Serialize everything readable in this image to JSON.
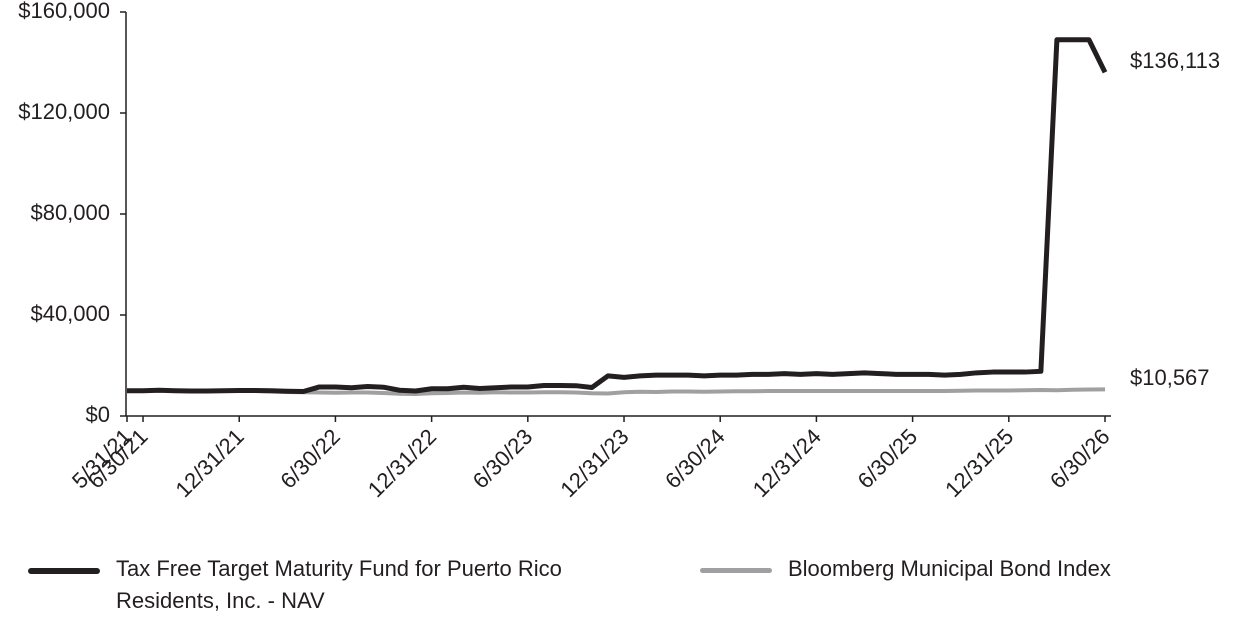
{
  "chart_data": {
    "type": "line",
    "categories": [
      "5/31/21",
      "6/30/21",
      null,
      null,
      null,
      null,
      null,
      "12/31/21",
      null,
      null,
      null,
      null,
      null,
      "6/30/22",
      null,
      null,
      null,
      null,
      null,
      "12/31/22",
      null,
      null,
      null,
      null,
      null,
      "6/30/23",
      null,
      null,
      null,
      null,
      null,
      "12/31/23",
      null,
      null,
      null,
      null,
      null,
      "6/30/24",
      null,
      null,
      null,
      null,
      null,
      "12/31/24",
      null,
      null,
      null,
      null,
      null,
      "6/30/25",
      null,
      null,
      null,
      null,
      null,
      "12/31/25",
      null,
      null,
      null,
      null,
      null,
      "6/30/26"
    ],
    "series": [
      {
        "name": "Tax Free Target Maturity Fund for Puerto Rico Residents, Inc. - NAV",
        "color": "#231f20",
        "values": [
          10000,
          10000,
          10200,
          10000,
          9900,
          9900,
          10000,
          10100,
          10100,
          10000,
          9800,
          9700,
          11500,
          11500,
          11200,
          11700,
          11400,
          10200,
          9900,
          10800,
          10800,
          11400,
          10900,
          11200,
          11500,
          11500,
          12100,
          12100,
          12000,
          11300,
          15900,
          15300,
          15900,
          16200,
          16200,
          16200,
          15900,
          16200,
          16200,
          16500,
          16500,
          16800,
          16500,
          16800,
          16500,
          16800,
          17100,
          16800,
          16500,
          16500,
          16500,
          16200,
          16500,
          17100,
          17400,
          17400,
          17400,
          17700,
          149000,
          149000,
          149000,
          136113
        ],
        "value_labels": [
          null,
          null,
          null,
          null,
          null,
          null,
          null,
          null,
          null,
          null,
          null,
          null,
          null,
          null,
          null,
          null,
          null,
          null,
          null,
          null,
          null,
          null,
          null,
          null,
          null,
          null,
          null,
          null,
          null,
          null,
          null,
          null,
          null,
          null,
          null,
          null,
          null,
          null,
          null,
          null,
          null,
          null,
          null,
          null,
          null,
          null,
          null,
          null,
          null,
          null,
          null,
          null,
          null,
          null,
          null,
          null,
          null,
          null,
          null,
          null,
          null,
          "$136,113"
        ]
      },
      {
        "name": "Bloomberg Municipal Bond Index",
        "color": "#a0a0a2",
        "values": [
          10000,
          10050,
          10100,
          10100,
          10050,
          10000,
          10000,
          9950,
          9900,
          9700,
          9500,
          9400,
          9300,
          9200,
          9300,
          9300,
          9100,
          8800,
          8700,
          9000,
          9100,
          9300,
          9200,
          9400,
          9300,
          9300,
          9400,
          9400,
          9300,
          9000,
          8900,
          9400,
          9600,
          9500,
          9700,
          9700,
          9600,
          9700,
          9800,
          9800,
          9900,
          9900,
          9900,
          9900,
          9900,
          9900,
          9900,
          9900,
          9900,
          9900,
          9900,
          9900,
          10000,
          10100,
          10100,
          10100,
          10200,
          10300,
          10200,
          10400,
          10500,
          10567
        ],
        "value_labels": [
          null,
          null,
          null,
          null,
          null,
          null,
          null,
          null,
          null,
          null,
          null,
          null,
          null,
          null,
          null,
          null,
          null,
          null,
          null,
          null,
          null,
          null,
          null,
          null,
          null,
          null,
          null,
          null,
          null,
          null,
          null,
          null,
          null,
          null,
          null,
          null,
          null,
          null,
          null,
          null,
          null,
          null,
          null,
          null,
          null,
          null,
          null,
          null,
          null,
          null,
          null,
          null,
          null,
          null,
          null,
          null,
          null,
          null,
          null,
          null,
          null,
          "$10,567"
        ]
      }
    ],
    "ylim": [
      0,
      160000
    ],
    "yticks": [
      {
        "value": 0,
        "label": "$0"
      },
      {
        "value": 40000,
        "label": "$40,000"
      },
      {
        "value": 80000,
        "label": "$80,000"
      },
      {
        "value": 120000,
        "label": "$120,000"
      },
      {
        "value": 160000,
        "label": "$160,000"
      }
    ],
    "grid": false,
    "legend": "bottom"
  }
}
